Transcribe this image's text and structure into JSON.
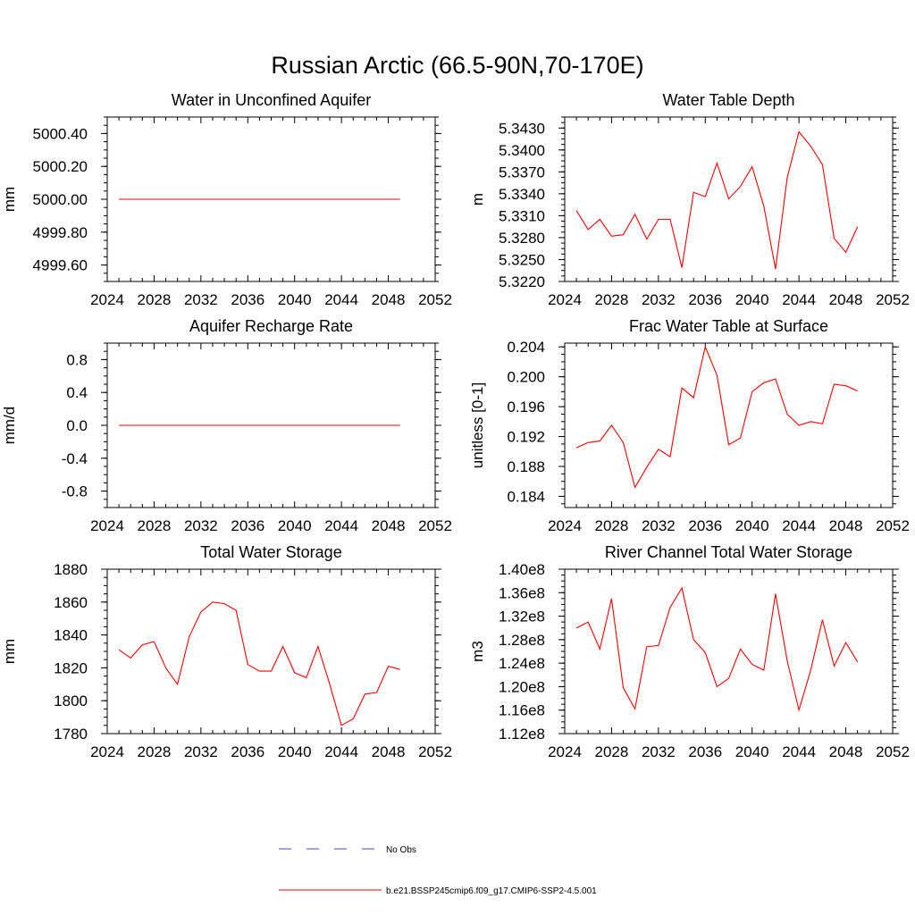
{
  "figure": {
    "title": "Russian Arctic (66.5-90N,70-170E)"
  },
  "legend": {
    "entries": [
      {
        "label": "No Obs",
        "color": "#4a4ac8",
        "style": "dashed"
      },
      {
        "label": "b.e21.BSSP245cmip6.f09_g17.CMIP6-SSP2-4.5.001",
        "color": "#ff0000",
        "style": "solid"
      }
    ]
  },
  "chart_data": [
    {
      "type": "line",
      "title": "Water in Unconfined Aquifer",
      "ylabel": "mm",
      "xlim": [
        2024,
        2052
      ],
      "ylim": [
        4999.5,
        5000.5
      ],
      "xticks": [
        "2024",
        "2028",
        "2032",
        "2036",
        "2040",
        "2044",
        "2048",
        "2052"
      ],
      "yticks": [
        {
          "value": 4999.6,
          "label": "4999.60"
        },
        {
          "value": 4999.8,
          "label": "4999.80"
        },
        {
          "value": 5000.0,
          "label": "5000.00"
        },
        {
          "value": 5000.2,
          "label": "5000.20"
        },
        {
          "value": 5000.4,
          "label": "5000.40"
        }
      ],
      "series": [
        {
          "color": "#ff0000",
          "x": [
            2025,
            2026,
            2027,
            2028,
            2029,
            2030,
            2031,
            2032,
            2033,
            2034,
            2035,
            2036,
            2037,
            2038,
            2039,
            2040,
            2041,
            2042,
            2043,
            2044,
            2045,
            2046,
            2047,
            2048,
            2049
          ],
          "y": [
            5000,
            5000,
            5000,
            5000,
            5000,
            5000,
            5000,
            5000,
            5000,
            5000,
            5000,
            5000,
            5000,
            5000,
            5000,
            5000,
            5000,
            5000,
            5000,
            5000,
            5000,
            5000,
            5000,
            5000,
            5000
          ]
        }
      ]
    },
    {
      "type": "line",
      "title": "Water Table Depth",
      "ylabel": "m",
      "xlim": [
        2024,
        2052
      ],
      "ylim": [
        5.322,
        5.3445
      ],
      "xticks": [
        "2024",
        "2028",
        "2032",
        "2036",
        "2040",
        "2044",
        "2048",
        "2052"
      ],
      "yticks": [
        {
          "value": 5.322,
          "label": "5.3220"
        },
        {
          "value": 5.325,
          "label": "5.3250"
        },
        {
          "value": 5.328,
          "label": "5.3280"
        },
        {
          "value": 5.331,
          "label": "5.3310"
        },
        {
          "value": 5.334,
          "label": "5.3340"
        },
        {
          "value": 5.337,
          "label": "5.3370"
        },
        {
          "value": 5.34,
          "label": "5.3400"
        },
        {
          "value": 5.343,
          "label": "5.3430"
        }
      ],
      "series": [
        {
          "color": "#ff0000",
          "x": [
            2025,
            2026,
            2027,
            2028,
            2029,
            2030,
            2031,
            2032,
            2033,
            2034,
            2035,
            2036,
            2037,
            2038,
            2039,
            2040,
            2041,
            2042,
            2043,
            2044,
            2045,
            2046,
            2047,
            2048,
            2049
          ],
          "y": [
            5.3317,
            5.3291,
            5.3305,
            5.3282,
            5.3284,
            5.3312,
            5.3278,
            5.3305,
            5.3305,
            5.3239,
            5.3342,
            5.3336,
            5.3382,
            5.3333,
            5.335,
            5.3377,
            5.3323,
            5.3237,
            5.3362,
            5.3425,
            5.3405,
            5.338,
            5.3279,
            5.326,
            5.3295
          ]
        }
      ]
    },
    {
      "type": "line",
      "title": "Aquifer Recharge Rate",
      "ylabel": "mm/d",
      "xlim": [
        2024,
        2052
      ],
      "ylim": [
        -1.0,
        1.0
      ],
      "xticks": [
        "2024",
        "2028",
        "2032",
        "2036",
        "2040",
        "2044",
        "2048",
        "2052"
      ],
      "yticks": [
        {
          "value": -0.8,
          "label": "-0.8"
        },
        {
          "value": -0.4,
          "label": "-0.4"
        },
        {
          "value": 0.0,
          "label": "0.0"
        },
        {
          "value": 0.4,
          "label": "0.4"
        },
        {
          "value": 0.8,
          "label": "0.8"
        }
      ],
      "series": [
        {
          "color": "#ff0000",
          "x": [
            2025,
            2026,
            2027,
            2028,
            2029,
            2030,
            2031,
            2032,
            2033,
            2034,
            2035,
            2036,
            2037,
            2038,
            2039,
            2040,
            2041,
            2042,
            2043,
            2044,
            2045,
            2046,
            2047,
            2048,
            2049
          ],
          "y": [
            0,
            0,
            0,
            0,
            0,
            0,
            0,
            0,
            0,
            0,
            0,
            0,
            0,
            0,
            0,
            0,
            0,
            0,
            0,
            0,
            0,
            0,
            0,
            0,
            0
          ]
        }
      ]
    },
    {
      "type": "line",
      "title": "Frac Water Table at Surface",
      "ylabel": "unitless [0-1]",
      "xlim": [
        2024,
        2052
      ],
      "ylim": [
        0.1825,
        0.2045
      ],
      "xticks": [
        "2024",
        "2028",
        "2032",
        "2036",
        "2040",
        "2044",
        "2048",
        "2052"
      ],
      "yticks": [
        {
          "value": 0.184,
          "label": "0.184"
        },
        {
          "value": 0.188,
          "label": "0.188"
        },
        {
          "value": 0.192,
          "label": "0.192"
        },
        {
          "value": 0.196,
          "label": "0.196"
        },
        {
          "value": 0.2,
          "label": "0.200"
        },
        {
          "value": 0.204,
          "label": "0.204"
        }
      ],
      "series": [
        {
          "color": "#ff0000",
          "x": [
            2025,
            2026,
            2027,
            2028,
            2029,
            2030,
            2031,
            2032,
            2033,
            2034,
            2035,
            2036,
            2037,
            2038,
            2039,
            2040,
            2041,
            2042,
            2043,
            2044,
            2045,
            2046,
            2047,
            2048,
            2049
          ],
          "y": [
            0.1905,
            0.1912,
            0.1914,
            0.1935,
            0.1912,
            0.1852,
            0.1879,
            0.1903,
            0.1893,
            0.1985,
            0.1972,
            0.204,
            0.2002,
            0.1909,
            0.1918,
            0.198,
            0.1992,
            0.1997,
            0.195,
            0.1935,
            0.194,
            0.1937,
            0.199,
            0.1988,
            0.1981
          ]
        }
      ]
    },
    {
      "type": "line",
      "title": "Total Water Storage",
      "ylabel": "mm",
      "xlim": [
        2024,
        2052
      ],
      "ylim": [
        1780,
        1880
      ],
      "xticks": [
        "2024",
        "2028",
        "2032",
        "2036",
        "2040",
        "2044",
        "2048",
        "2052"
      ],
      "yticks": [
        {
          "value": 1780,
          "label": "1780"
        },
        {
          "value": 1800,
          "label": "1800"
        },
        {
          "value": 1820,
          "label": "1820"
        },
        {
          "value": 1840,
          "label": "1840"
        },
        {
          "value": 1860,
          "label": "1860"
        },
        {
          "value": 1880,
          "label": "1880"
        }
      ],
      "series": [
        {
          "color": "#ff0000",
          "x": [
            2025,
            2026,
            2027,
            2028,
            2029,
            2030,
            2031,
            2032,
            2033,
            2034,
            2035,
            2036,
            2037,
            2038,
            2039,
            2040,
            2041,
            2042,
            2043,
            2044,
            2045,
            2046,
            2047,
            2048,
            2049
          ],
          "y": [
            1831,
            1826,
            1834,
            1836,
            1820,
            1810,
            1839,
            1854,
            1860,
            1859,
            1855,
            1822,
            1818,
            1818,
            1833,
            1817,
            1814,
            1833,
            1810,
            1785,
            1789,
            1804,
            1805,
            1821,
            1819
          ]
        }
      ]
    },
    {
      "type": "line",
      "title": "River Channel Total Water Storage",
      "ylabel": "m3",
      "xlim": [
        2024,
        2052
      ],
      "ylim": [
        112000000.0,
        140000000.0
      ],
      "xticks": [
        "2024",
        "2028",
        "2032",
        "2036",
        "2040",
        "2044",
        "2048",
        "2052"
      ],
      "yticks": [
        {
          "value": 112000000.0,
          "label": "1.12e8"
        },
        {
          "value": 116000000.0,
          "label": "1.16e8"
        },
        {
          "value": 120000000.0,
          "label": "1.20e8"
        },
        {
          "value": 124000000.0,
          "label": "1.24e8"
        },
        {
          "value": 128000000.0,
          "label": "1.28e8"
        },
        {
          "value": 132000000.0,
          "label": "1.32e8"
        },
        {
          "value": 136000000.0,
          "label": "1.36e8"
        },
        {
          "value": 140000000.0,
          "label": "1.40e8"
        }
      ],
      "series": [
        {
          "color": "#ff0000",
          "x": [
            2025,
            2026,
            2027,
            2028,
            2029,
            2030,
            2031,
            2032,
            2033,
            2034,
            2035,
            2036,
            2037,
            2038,
            2039,
            2040,
            2041,
            2042,
            2043,
            2044,
            2045,
            2046,
            2047,
            2048,
            2049
          ],
          "y": [
            130000000.0,
            131000000.0,
            126400000.0,
            135000000.0,
            119800000.0,
            116200000.0,
            126800000.0,
            127000000.0,
            133500000.0,
            136800000.0,
            128000000.0,
            125800000.0,
            120000000.0,
            121400000.0,
            126400000.0,
            123800000.0,
            122800000.0,
            135800000.0,
            124400000.0,
            116000000.0,
            122800000.0,
            131400000.0,
            123500000.0,
            127500000.0,
            124200000.0
          ]
        }
      ]
    }
  ]
}
